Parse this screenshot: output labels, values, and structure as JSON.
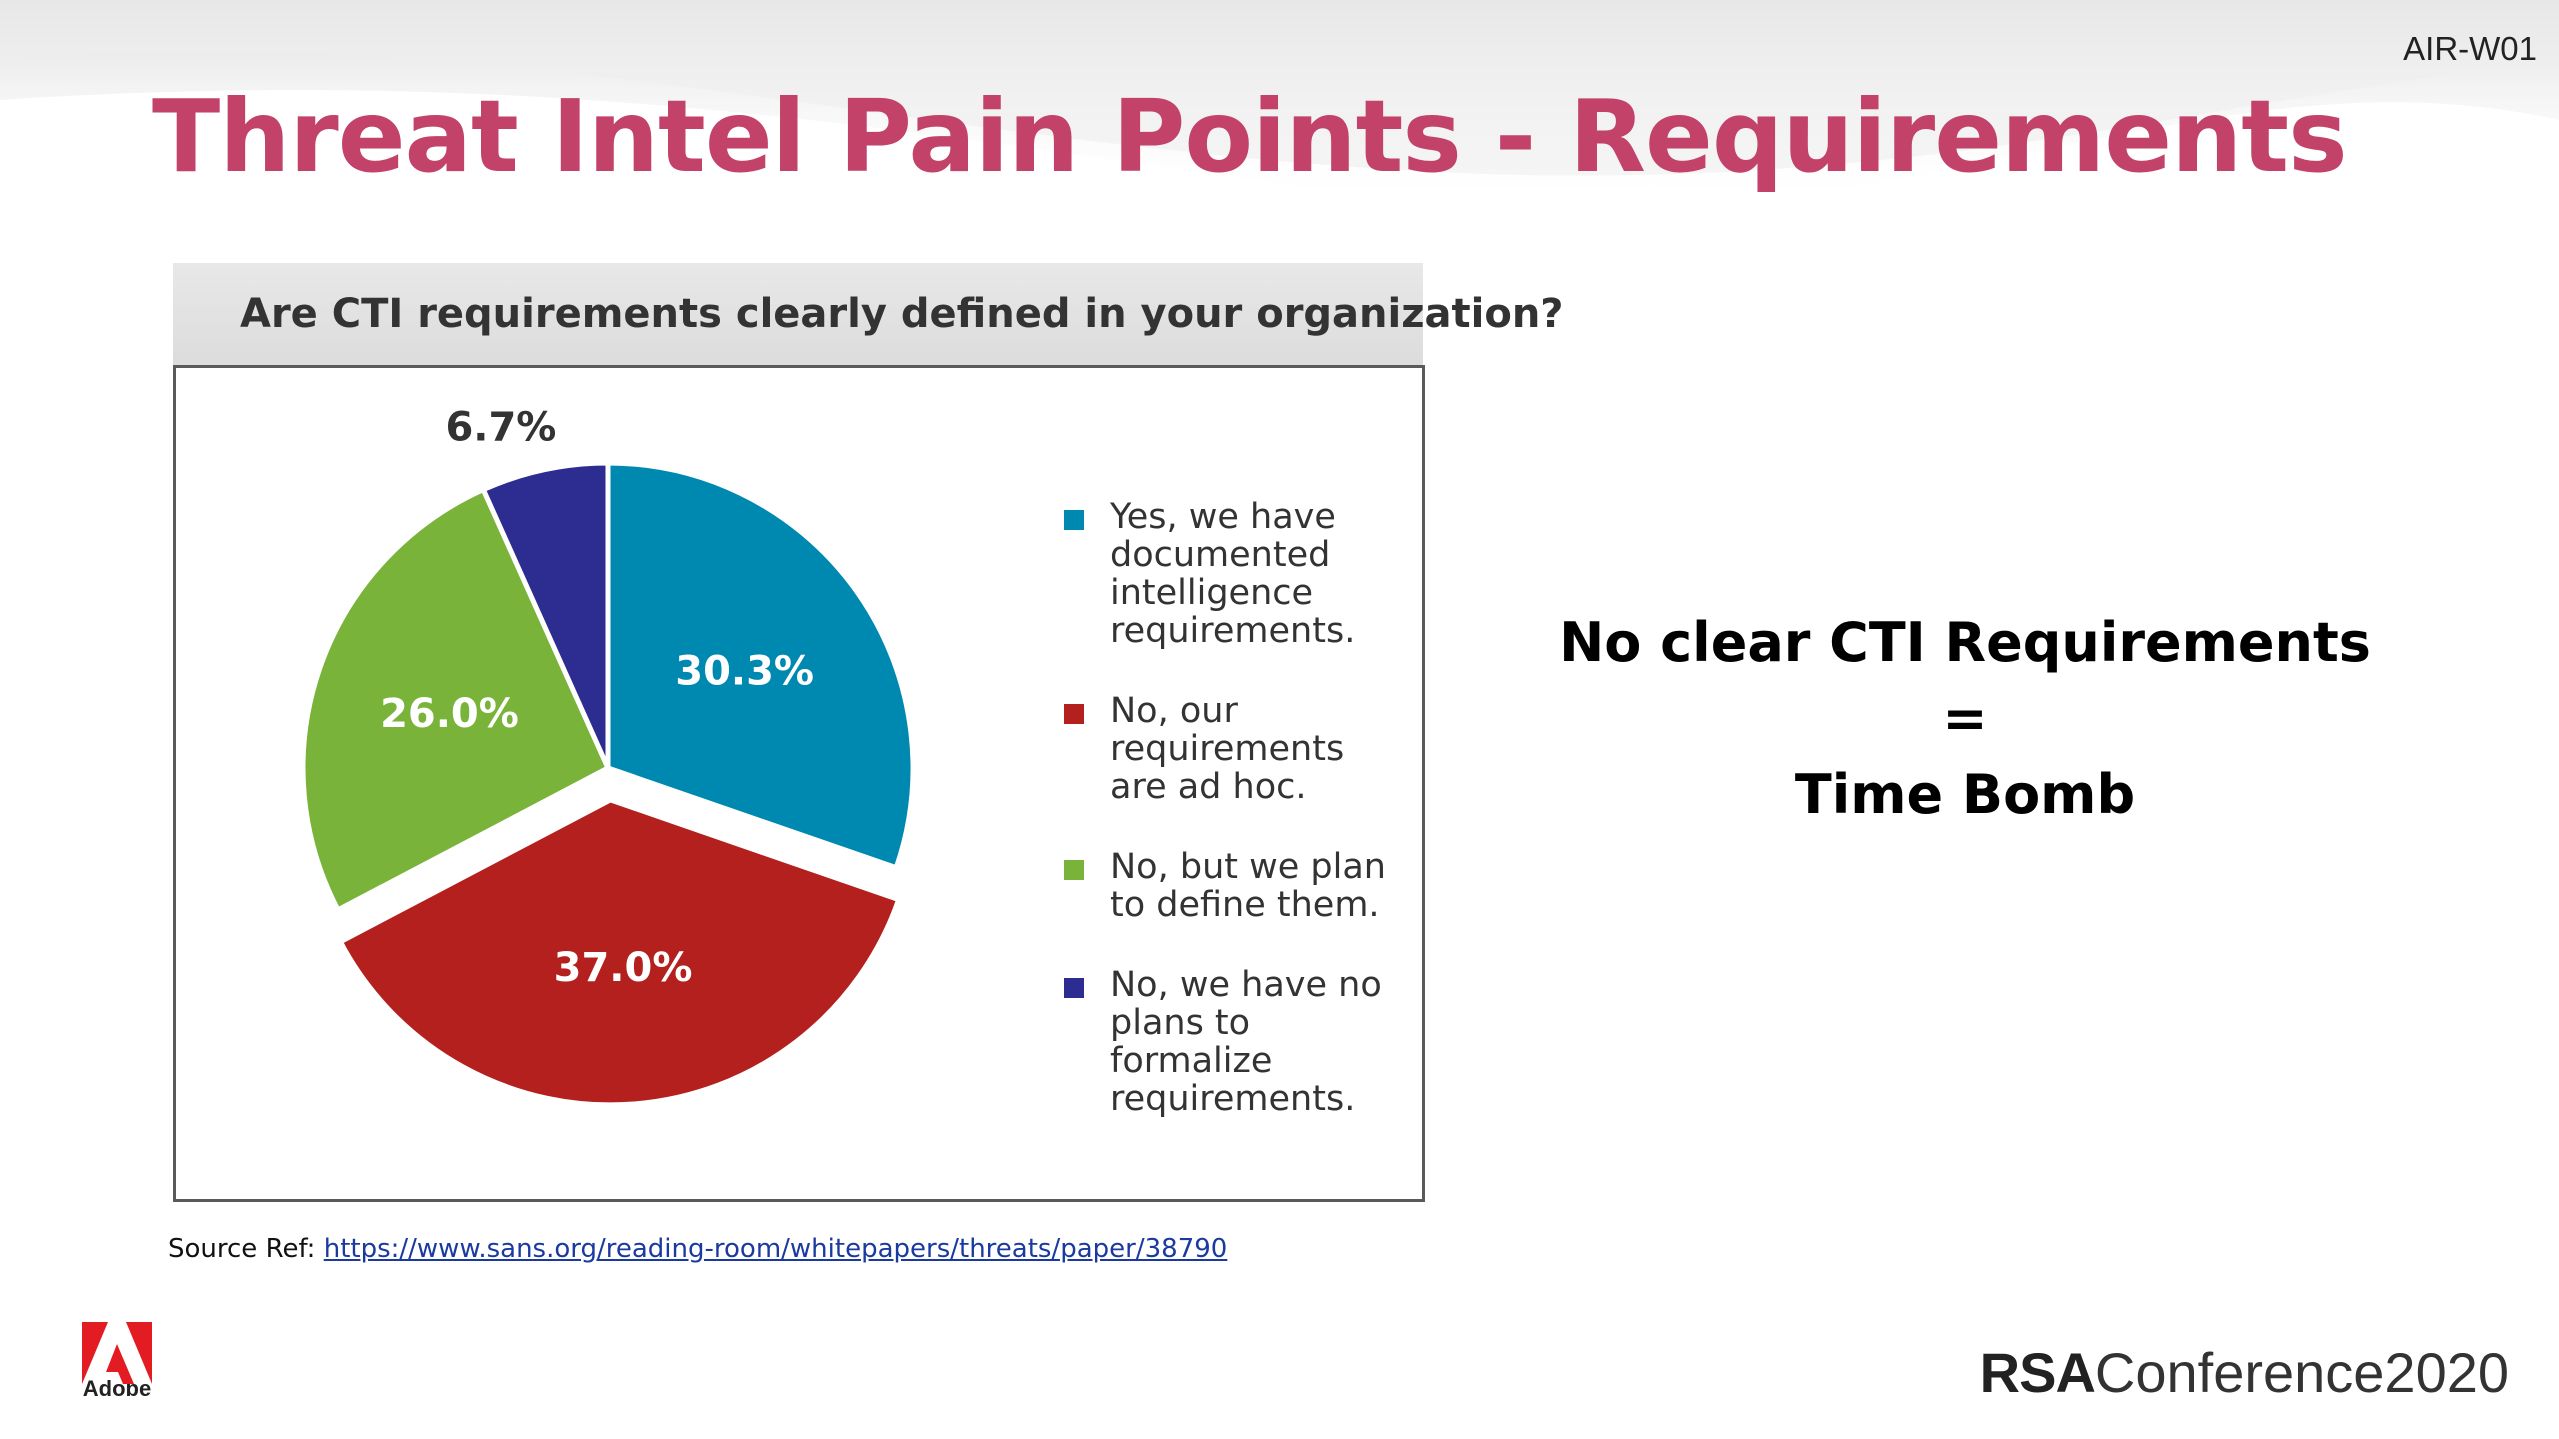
{
  "slide": {
    "session_code": "AIR-W01",
    "title": "Threat Intel Pain Points - Requirements",
    "callout": {
      "line1": "No clear CTI Requirements",
      "line2": "=",
      "line3": "Time Bomb"
    },
    "source_prefix": "Source Ref:",
    "source_link": "https://www.sans.org/reading-room/whitepapers/threats/paper/38790",
    "footer_logo_left": "Adobe",
    "footer_logo_right_bold": "RSA",
    "footer_logo_right_text": "Conference2020"
  },
  "colors": {
    "title": "#c2426a",
    "yes_documented": "#0089b0",
    "ad_hoc": "#b3201d",
    "plan_to_define": "#7ab33a",
    "no_plans": "#2d2d91"
  },
  "chart_data": {
    "type": "pie",
    "title": "Are CTI requirements clearly defined in your organization?",
    "start_angle_deg": 0,
    "direction": "clockwise",
    "slices": [
      {
        "label": "Yes, we have documented intelligence requirements.",
        "value": 30.3,
        "display": "30.3%",
        "color": "#0089b0"
      },
      {
        "label": "No, our requirements are ad hoc.",
        "value": 37.0,
        "display": "37.0%",
        "color": "#b3201d"
      },
      {
        "label": "No, but we plan to define them.",
        "value": 26.0,
        "display": "26.0%",
        "color": "#7ab33a"
      },
      {
        "label": "No, we have no plans to formalize requirements.",
        "value": 6.7,
        "display": "6.7%",
        "color": "#2d2d91"
      }
    ],
    "exploded_slice": "No, our requirements are ad hoc.",
    "legend_position": "right"
  }
}
